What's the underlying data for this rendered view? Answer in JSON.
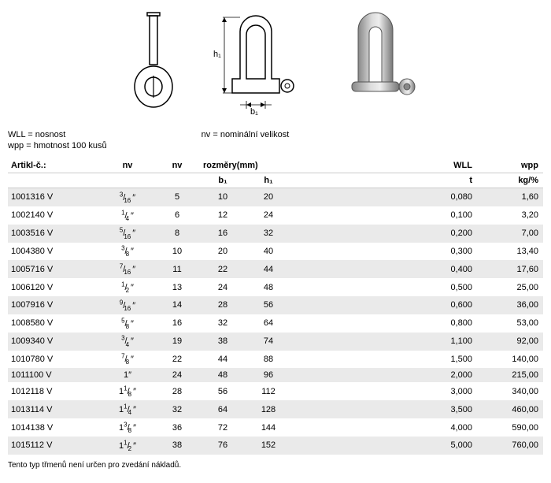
{
  "legend": {
    "wll": "WLL = nosnost",
    "wpp": "wpp = hmotnost 100 kusů",
    "nv": "nv = nominální velikost"
  },
  "headers": {
    "artikl": "Artikl-č.:",
    "nv": "nv",
    "rozmery": "rozměry(mm)",
    "b1": "b₁",
    "h1": "h₁",
    "wll": "WLL",
    "wpp": "wpp",
    "t": "t",
    "kg": "kg/%"
  },
  "rows": [
    {
      "artikl": "1001316 V",
      "nv1_n": "3",
      "nv1_d": "16",
      "nv2": "5",
      "b1": "10",
      "h1": "20",
      "wll": "0,080",
      "wpp": "1,60"
    },
    {
      "artikl": "1002140 V",
      "nv1_n": "1",
      "nv1_d": "4",
      "nv2": "6",
      "b1": "12",
      "h1": "24",
      "wll": "0,100",
      "wpp": "3,20"
    },
    {
      "artikl": "1003516 V",
      "nv1_n": "5",
      "nv1_d": "16",
      "nv2": "8",
      "b1": "16",
      "h1": "32",
      "wll": "0,200",
      "wpp": "7,00"
    },
    {
      "artikl": "1004380 V",
      "nv1_n": "3",
      "nv1_d": "8",
      "nv2": "10",
      "b1": "20",
      "h1": "40",
      "wll": "0,300",
      "wpp": "13,40"
    },
    {
      "artikl": "1005716 V",
      "nv1_n": "7",
      "nv1_d": "16",
      "nv2": "11",
      "b1": "22",
      "h1": "44",
      "wll": "0,400",
      "wpp": "17,60"
    },
    {
      "artikl": "1006120 V",
      "nv1_n": "1",
      "nv1_d": "2",
      "nv2": "13",
      "b1": "24",
      "h1": "48",
      "wll": "0,500",
      "wpp": "25,00"
    },
    {
      "artikl": "1007916 V",
      "nv1_n": "9",
      "nv1_d": "16",
      "nv2": "14",
      "b1": "28",
      "h1": "56",
      "wll": "0,600",
      "wpp": "36,00"
    },
    {
      "artikl": "1008580 V",
      "nv1_n": "5",
      "nv1_d": "8",
      "nv2": "16",
      "b1": "32",
      "h1": "64",
      "wll": "0,800",
      "wpp": "53,00"
    },
    {
      "artikl": "1009340 V",
      "nv1_n": "3",
      "nv1_d": "4",
      "nv2": "19",
      "b1": "38",
      "h1": "74",
      "wll": "1,100",
      "wpp": "92,00"
    },
    {
      "artikl": "1010780 V",
      "nv1_n": "7",
      "nv1_d": "8",
      "nv2": "22",
      "b1": "44",
      "h1": "88",
      "wll": "1,500",
      "wpp": "140,00"
    },
    {
      "artikl": "1011100 V",
      "nv1_whole": "1",
      "nv2": "24",
      "b1": "48",
      "h1": "96",
      "wll": "2,000",
      "wpp": "215,00"
    },
    {
      "artikl": "1012118 V",
      "nv1_w": "1",
      "nv1_n": "1",
      "nv1_d": "8",
      "nv2": "28",
      "b1": "56",
      "h1": "112",
      "wll": "3,000",
      "wpp": "340,00"
    },
    {
      "artikl": "1013114 V",
      "nv1_w": "1",
      "nv1_n": "1",
      "nv1_d": "4",
      "nv2": "32",
      "b1": "64",
      "h1": "128",
      "wll": "3,500",
      "wpp": "460,00"
    },
    {
      "artikl": "1014138 V",
      "nv1_w": "1",
      "nv1_n": "3",
      "nv1_d": "8",
      "nv2": "36",
      "b1": "72",
      "h1": "144",
      "wll": "4,000",
      "wpp": "590,00"
    },
    {
      "artikl": "1015112 V",
      "nv1_w": "1",
      "nv1_n": "1",
      "nv1_d": "2",
      "nv2": "38",
      "b1": "76",
      "h1": "152",
      "wll": "5,000",
      "wpp": "760,00"
    }
  ],
  "footnote": "Tento typ třmenů není určen pro zvedání nákladů.",
  "diagram_labels": {
    "h1": "h₁",
    "b1": "b₁"
  }
}
